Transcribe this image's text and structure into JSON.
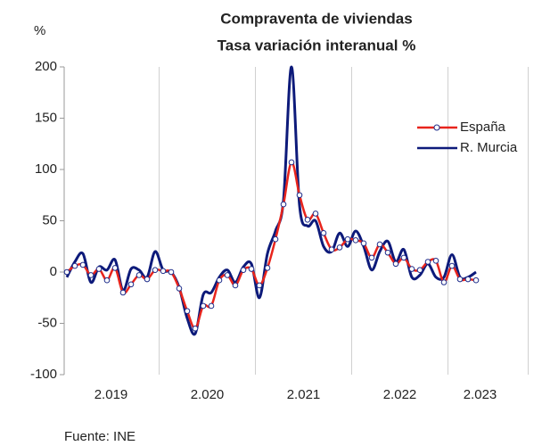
{
  "chart_data": {
    "type": "line",
    "title": "Compraventa de viviendas",
    "subtitle": "Tasa variación interanual %",
    "y_label": "%",
    "source": "Fuente: INE",
    "categories": [
      null,
      null,
      null,
      null,
      null,
      "2.019",
      null,
      null,
      null,
      null,
      null,
      null,
      null,
      null,
      null,
      null,
      null,
      "2.020",
      null,
      null,
      null,
      null,
      null,
      null,
      null,
      null,
      null,
      null,
      null,
      "2.021",
      null,
      null,
      null,
      null,
      null,
      null,
      null,
      null,
      null,
      null,
      null,
      "2.022",
      null,
      null,
      null,
      null,
      null,
      null,
      null,
      null,
      null,
      "2.023"
    ],
    "series": [
      {
        "name": "España",
        "color": "#e8241c",
        "marker": true,
        "values": [
          0,
          6,
          7,
          -3,
          3,
          -8,
          4,
          -20,
          -12,
          -3,
          -7,
          2,
          1,
          0,
          -16,
          -38,
          -55,
          -33,
          -33,
          -8,
          -3,
          -13,
          2,
          3,
          -13,
          4,
          32,
          66,
          107,
          75,
          51,
          57,
          38,
          22,
          24,
          32,
          31,
          28,
          14,
          27,
          19,
          8,
          14,
          3,
          2,
          10,
          11,
          -10,
          6,
          -7,
          -7,
          -8
        ]
      },
      {
        "name": "R. Murcia",
        "color": "#0d1a7a",
        "marker": false,
        "values": [
          -5,
          10,
          18,
          -10,
          5,
          2,
          12,
          -18,
          3,
          2,
          -5,
          20,
          2,
          0,
          -15,
          -45,
          -60,
          -22,
          -20,
          -5,
          2,
          -10,
          5,
          8,
          -25,
          18,
          40,
          70,
          200,
          65,
          45,
          50,
          25,
          20,
          38,
          25,
          40,
          25,
          2,
          20,
          30,
          10,
          22,
          -5,
          -3,
          8,
          -5,
          -5,
          17,
          -5,
          -5,
          0
        ]
      }
    ],
    "ylim": [
      -100,
      200
    ],
    "yticks": [
      -100,
      -50,
      0,
      50,
      100,
      150,
      200
    ],
    "legend": "right"
  }
}
